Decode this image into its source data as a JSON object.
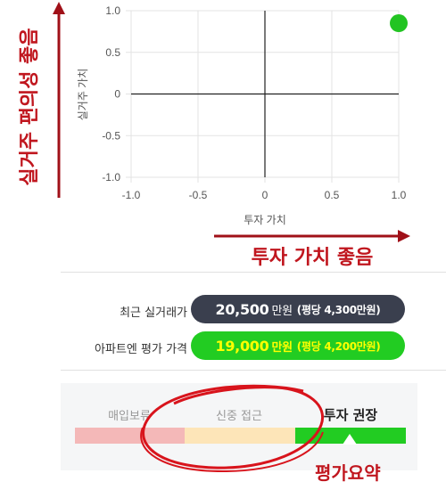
{
  "chart_data": {
    "type": "scatter",
    "xlabel": "투자 가치",
    "ylabel": "실거주 가치",
    "xlim": [
      -1.0,
      1.0
    ],
    "ylim": [
      -1.0,
      1.0
    ],
    "xticks": [
      "-1.0",
      "-0.5",
      "0",
      "0.5",
      "1.0"
    ],
    "yticks": [
      "1.0",
      "0.5",
      "0",
      "-0.5",
      "-1.0"
    ],
    "grid": true,
    "points": [
      {
        "x": 1.0,
        "y": 0.85,
        "color": "#22c422"
      }
    ]
  },
  "annotations": {
    "y_arrow_label": "실거주 편의성 좋음",
    "x_arrow_label": "투자 가치 좋음",
    "summary_label": "평가요약",
    "color": "#c0161e"
  },
  "prices": {
    "recent": {
      "label": "최근 실거래가",
      "value": "20,500",
      "unit": "만원",
      "sub": "(평당 4,300만원)",
      "bg": "#3a3f4e",
      "text_color": "#ffffff"
    },
    "estimate": {
      "label": "아파트엔 평가 가격",
      "value": "19,000",
      "unit": "만원",
      "sub": "(평당 4,200만원)",
      "bg": "#22cc22",
      "text_color": "#ffff00"
    }
  },
  "summary": {
    "segments": [
      {
        "label": "매입보류",
        "color": "#f4b8b8",
        "active": false
      },
      {
        "label": "신중 접근",
        "color": "#fde5b8",
        "active": false
      },
      {
        "label": "투자 권장",
        "color": "#22cc22",
        "active": true
      }
    ]
  }
}
